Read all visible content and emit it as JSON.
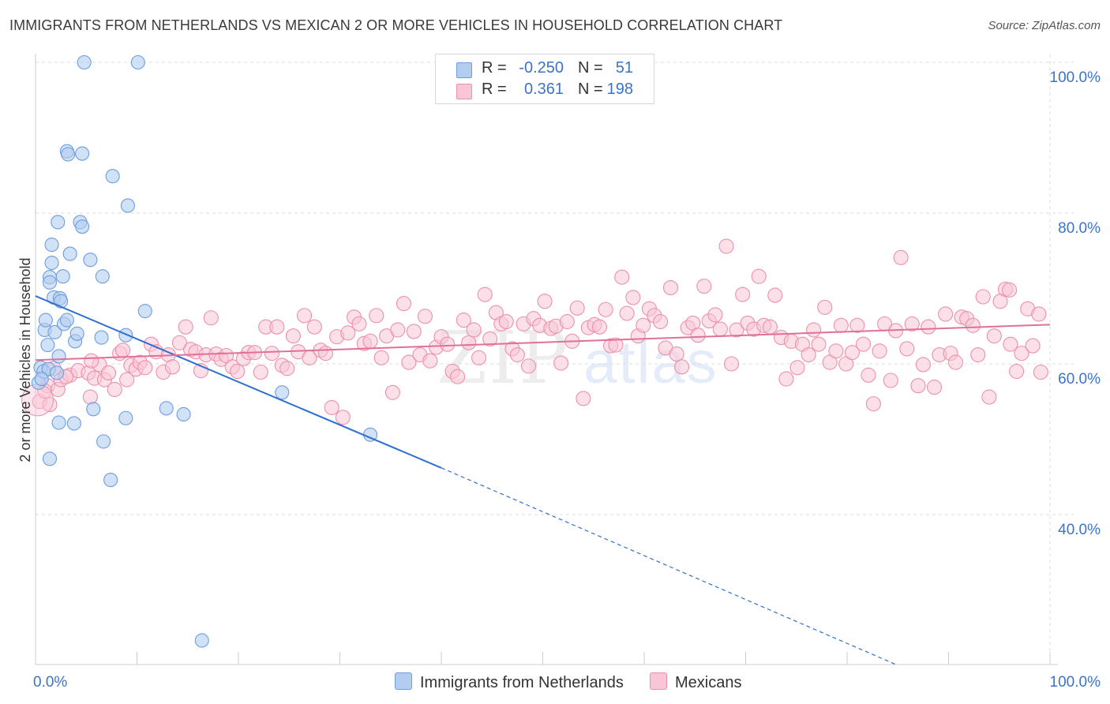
{
  "title": "IMMIGRANTS FROM NETHERLANDS VS MEXICAN 2 OR MORE VEHICLES IN HOUSEHOLD CORRELATION CHART",
  "source": "Source: ZipAtlas.com",
  "watermark": {
    "zip": "ZIP",
    "atlas": "atlas"
  },
  "colors": {
    "blue_fill": "#b3cdf0",
    "blue_stroke": "#6c9ee0",
    "blue_line": "#2f6fd0",
    "pink_fill": "#f8c6d5",
    "pink_stroke": "#ee8fad",
    "pink_line": "#e0709a",
    "axis_text": "#3d73c6",
    "grid": "#dddddd"
  },
  "legend": {
    "rows": [
      {
        "r_label": "R =",
        "r_value": "-0.250",
        "n_label": "N =",
        "n_value": "51"
      },
      {
        "r_label": "R =",
        "r_value": "0.361",
        "n_label": "N =",
        "n_value": "198"
      }
    ]
  },
  "bottom_legend": [
    {
      "label": "Immigrants from Netherlands"
    },
    {
      "label": "Mexicans"
    }
  ],
  "chart_data": {
    "type": "scatter",
    "title": "IMMIGRANTS FROM NETHERLANDS VS MEXICAN 2 OR MORE VEHICLES IN HOUSEHOLD CORRELATION CHART",
    "xlabel": "",
    "ylabel": "2 or more Vehicles in Household",
    "xlim": [
      0,
      100
    ],
    "ylim": [
      20,
      102
    ],
    "x_ticks": [
      "0.0%",
      "100.0%"
    ],
    "y_ticks": [
      {
        "value": 100,
        "label": "100.0%"
      },
      {
        "value": 80,
        "label": "80.0%"
      },
      {
        "value": 60,
        "label": "60.0%"
      },
      {
        "value": 40,
        "label": "40.0%"
      }
    ],
    "grid": true,
    "legend_position": "top-center",
    "series": [
      {
        "name": "Immigrants from Netherlands",
        "color": "#6c9ee0",
        "trend": {
          "x0": 0,
          "y0": 69.0,
          "x1": 40,
          "y1": 46.2,
          "dashed_to_x": 100,
          "dashed_to_y": 12.0
        },
        "points": [
          [
            0.3,
            57.5
          ],
          [
            0.5,
            59.5
          ],
          [
            0.8,
            59.0
          ],
          [
            0.9,
            64.5
          ],
          [
            1.0,
            65.8
          ],
          [
            1.3,
            59.3
          ],
          [
            1.4,
            71.5
          ],
          [
            1.4,
            70.8
          ],
          [
            1.6,
            75.8
          ],
          [
            1.6,
            73.4
          ],
          [
            1.8,
            68.8
          ],
          [
            1.9,
            64.2
          ],
          [
            2.1,
            58.8
          ],
          [
            2.2,
            78.8
          ],
          [
            2.3,
            52.2
          ],
          [
            2.3,
            61.0
          ],
          [
            2.4,
            68.7
          ],
          [
            2.5,
            68.3
          ],
          [
            2.7,
            71.6
          ],
          [
            2.8,
            65.3
          ],
          [
            3.1,
            65.8
          ],
          [
            3.1,
            88.2
          ],
          [
            3.2,
            87.8
          ],
          [
            3.4,
            74.6
          ],
          [
            3.8,
            52.1
          ],
          [
            3.9,
            63.0
          ],
          [
            4.1,
            64.0
          ],
          [
            4.4,
            78.8
          ],
          [
            4.6,
            78.2
          ],
          [
            4.6,
            87.9
          ],
          [
            4.8,
            100.0
          ],
          [
            5.4,
            73.8
          ],
          [
            5.7,
            54.0
          ],
          [
            6.5,
            63.5
          ],
          [
            6.6,
            71.6
          ],
          [
            6.7,
            49.7
          ],
          [
            7.4,
            44.6
          ],
          [
            7.6,
            84.9
          ],
          [
            8.9,
            52.8
          ],
          [
            8.9,
            63.8
          ],
          [
            9.1,
            81.0
          ],
          [
            10.1,
            100.0
          ],
          [
            10.8,
            67.0
          ],
          [
            12.9,
            54.1
          ],
          [
            14.6,
            53.3
          ],
          [
            16.4,
            23.3
          ],
          [
            24.3,
            56.2
          ],
          [
            33.0,
            50.6
          ],
          [
            1.4,
            47.4
          ],
          [
            0.6,
            58.0
          ],
          [
            1.2,
            62.5
          ]
        ]
      },
      {
        "name": "Mexicans",
        "color": "#ee8fad",
        "trend": {
          "x0": 0,
          "y0": 60.5,
          "x1": 100,
          "y1": 65.2
        },
        "points": [
          [
            0.4,
            55.0
          ],
          [
            1.2,
            57.1
          ],
          [
            1.4,
            54.6
          ],
          [
            2.2,
            56.6
          ],
          [
            2.5,
            57.9
          ],
          [
            3.4,
            58.5
          ],
          [
            4.2,
            59.1
          ],
          [
            5.2,
            58.8
          ],
          [
            5.4,
            55.6
          ],
          [
            5.8,
            58.1
          ],
          [
            6.3,
            59.9
          ],
          [
            6.8,
            57.9
          ],
          [
            7.2,
            58.8
          ],
          [
            7.8,
            56.6
          ],
          [
            8.3,
            61.4
          ],
          [
            8.6,
            61.8
          ],
          [
            9.0,
            57.9
          ],
          [
            9.4,
            59.8
          ],
          [
            9.9,
            59.3
          ],
          [
            10.3,
            60.2
          ],
          [
            10.8,
            59.5
          ],
          [
            11.4,
            62.6
          ],
          [
            11.9,
            61.6
          ],
          [
            12.6,
            58.9
          ],
          [
            13.1,
            61.2
          ],
          [
            13.5,
            59.6
          ],
          [
            14.2,
            62.8
          ],
          [
            14.8,
            64.9
          ],
          [
            15.3,
            61.9
          ],
          [
            15.8,
            61.6
          ],
          [
            16.3,
            59.1
          ],
          [
            16.8,
            61.2
          ],
          [
            17.3,
            66.1
          ],
          [
            17.8,
            61.3
          ],
          [
            18.3,
            60.6
          ],
          [
            18.8,
            61.1
          ],
          [
            19.4,
            59.6
          ],
          [
            19.9,
            59.0
          ],
          [
            20.5,
            60.7
          ],
          [
            21.0,
            61.5
          ],
          [
            21.6,
            61.5
          ],
          [
            22.2,
            58.9
          ],
          [
            22.7,
            64.9
          ],
          [
            23.3,
            61.4
          ],
          [
            23.8,
            64.9
          ],
          [
            24.3,
            59.8
          ],
          [
            24.8,
            59.4
          ],
          [
            25.4,
            63.7
          ],
          [
            25.9,
            61.6
          ],
          [
            26.5,
            66.4
          ],
          [
            27.0,
            60.8
          ],
          [
            27.5,
            64.9
          ],
          [
            28.1,
            61.8
          ],
          [
            28.6,
            61.4
          ],
          [
            29.2,
            54.2
          ],
          [
            29.7,
            63.6
          ],
          [
            30.3,
            52.9
          ],
          [
            30.8,
            64.1
          ],
          [
            31.4,
            66.2
          ],
          [
            31.9,
            65.3
          ],
          [
            32.4,
            62.7
          ],
          [
            33.0,
            63.0
          ],
          [
            33.6,
            66.4
          ],
          [
            34.1,
            60.8
          ],
          [
            34.6,
            63.7
          ],
          [
            35.2,
            56.2
          ],
          [
            35.7,
            64.5
          ],
          [
            36.3,
            68.0
          ],
          [
            36.8,
            60.2
          ],
          [
            37.3,
            64.3
          ],
          [
            37.9,
            61.2
          ],
          [
            38.4,
            66.3
          ],
          [
            38.9,
            60.4
          ],
          [
            39.5,
            62.2
          ],
          [
            40.0,
            63.6
          ],
          [
            40.6,
            62.6
          ],
          [
            41.1,
            59.0
          ],
          [
            41.6,
            58.3
          ],
          [
            42.2,
            65.8
          ],
          [
            42.7,
            62.8
          ],
          [
            43.2,
            64.5
          ],
          [
            43.7,
            60.8
          ],
          [
            44.3,
            69.2
          ],
          [
            44.8,
            63.3
          ],
          [
            45.4,
            66.8
          ],
          [
            45.9,
            65.3
          ],
          [
            46.4,
            65.6
          ],
          [
            47.0,
            62.0
          ],
          [
            47.5,
            61.2
          ],
          [
            48.1,
            65.3
          ],
          [
            48.6,
            59.7
          ],
          [
            49.1,
            66.0
          ],
          [
            49.7,
            65.1
          ],
          [
            50.2,
            68.3
          ],
          [
            50.8,
            64.7
          ],
          [
            51.3,
            65.0
          ],
          [
            51.8,
            60.1
          ],
          [
            52.4,
            65.6
          ],
          [
            52.9,
            63.0
          ],
          [
            53.4,
            67.4
          ],
          [
            54.0,
            55.4
          ],
          [
            54.5,
            64.8
          ],
          [
            55.1,
            65.2
          ],
          [
            55.6,
            64.9
          ],
          [
            56.2,
            67.2
          ],
          [
            56.7,
            62.4
          ],
          [
            57.2,
            62.5
          ],
          [
            57.8,
            71.5
          ],
          [
            58.3,
            66.7
          ],
          [
            58.9,
            68.8
          ],
          [
            59.4,
            63.7
          ],
          [
            59.9,
            65.1
          ],
          [
            60.5,
            67.3
          ],
          [
            61.0,
            66.4
          ],
          [
            61.6,
            65.6
          ],
          [
            62.1,
            62.1
          ],
          [
            62.6,
            70.1
          ],
          [
            63.2,
            61.3
          ],
          [
            63.7,
            59.6
          ],
          [
            64.3,
            64.8
          ],
          [
            64.8,
            65.4
          ],
          [
            65.3,
            63.8
          ],
          [
            65.9,
            70.3
          ],
          [
            66.4,
            65.7
          ],
          [
            67.0,
            66.5
          ],
          [
            67.5,
            64.6
          ],
          [
            68.1,
            75.6
          ],
          [
            68.6,
            60.0
          ],
          [
            69.1,
            64.5
          ],
          [
            69.7,
            69.2
          ],
          [
            70.2,
            65.4
          ],
          [
            70.8,
            64.6
          ],
          [
            71.3,
            71.6
          ],
          [
            71.8,
            65.1
          ],
          [
            72.4,
            64.9
          ],
          [
            72.9,
            69.1
          ],
          [
            73.5,
            63.5
          ],
          [
            74.0,
            58.0
          ],
          [
            74.5,
            63.0
          ],
          [
            75.1,
            59.5
          ],
          [
            75.6,
            62.6
          ],
          [
            76.2,
            61.2
          ],
          [
            76.7,
            64.5
          ],
          [
            77.2,
            62.6
          ],
          [
            77.8,
            67.5
          ],
          [
            78.3,
            60.2
          ],
          [
            78.9,
            61.7
          ],
          [
            79.4,
            65.1
          ],
          [
            79.9,
            60.0
          ],
          [
            80.5,
            61.5
          ],
          [
            81.0,
            65.1
          ],
          [
            81.6,
            62.6
          ],
          [
            82.1,
            58.5
          ],
          [
            82.6,
            54.7
          ],
          [
            83.2,
            61.7
          ],
          [
            83.7,
            65.3
          ],
          [
            84.3,
            57.8
          ],
          [
            84.8,
            64.4
          ],
          [
            85.3,
            74.1
          ],
          [
            85.9,
            62.0
          ],
          [
            86.4,
            65.3
          ],
          [
            87.0,
            57.1
          ],
          [
            87.5,
            59.9
          ],
          [
            88.0,
            64.9
          ],
          [
            88.6,
            56.9
          ],
          [
            89.1,
            61.2
          ],
          [
            89.7,
            66.6
          ],
          [
            90.2,
            61.4
          ],
          [
            90.7,
            60.2
          ],
          [
            91.3,
            66.2
          ],
          [
            91.8,
            66.0
          ],
          [
            92.4,
            65.1
          ],
          [
            92.9,
            61.2
          ],
          [
            93.4,
            68.9
          ],
          [
            94.0,
            55.6
          ],
          [
            94.5,
            63.7
          ],
          [
            95.1,
            68.3
          ],
          [
            95.6,
            69.9
          ],
          [
            96.1,
            62.6
          ],
          [
            96.7,
            59.0
          ],
          [
            97.2,
            61.4
          ],
          [
            97.8,
            67.3
          ],
          [
            98.3,
            62.4
          ],
          [
            98.9,
            66.6
          ],
          [
            99.1,
            58.9
          ],
          [
            96.0,
            69.8
          ],
          [
            1.8,
            59.4
          ],
          [
            3.0,
            58.3
          ],
          [
            0.9,
            56.4
          ],
          [
            5.5,
            60.4
          ]
        ]
      }
    ]
  }
}
